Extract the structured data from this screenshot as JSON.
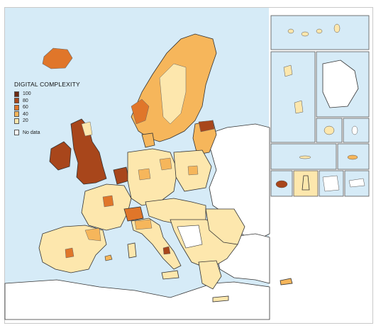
{
  "legend": {
    "title": "DIGITAL COMPLEXITY",
    "items": [
      {
        "label": "100",
        "color": "#6b2a12"
      },
      {
        "label": "80",
        "color": "#a8461b"
      },
      {
        "label": "60",
        "color": "#e0762a"
      },
      {
        "label": "40",
        "color": "#f6b65b"
      },
      {
        "label": "20",
        "color": "#fde7ad"
      }
    ],
    "no_data": {
      "label": "No data",
      "color": "#ffffff"
    }
  },
  "colors": {
    "sea": "#d6ebf7",
    "land_no_data": "#ffffff",
    "border": "#222222"
  }
}
